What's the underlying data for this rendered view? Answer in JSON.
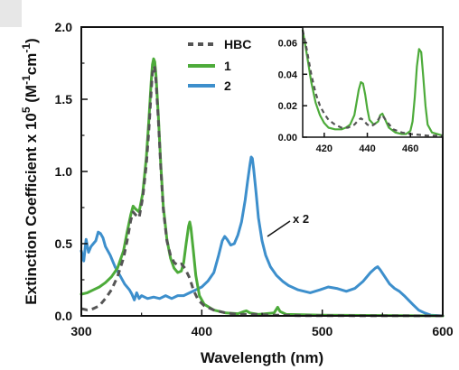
{
  "chart_data": [
    {
      "type": "line",
      "xlabel": "Wavelength (nm)",
      "ylabel_parts": [
        "Extinction Coefficient x 10",
        "5",
        " (M",
        "-1",
        "cm",
        "-1",
        ")"
      ],
      "xlim": [
        300,
        600
      ],
      "ylim": [
        0,
        2.0
      ],
      "x_ticks": [
        300,
        400,
        500,
        600
      ],
      "y_ticks": [
        0.0,
        0.5,
        1.0,
        1.5,
        2.0
      ],
      "y_tick_labels": [
        "0.0",
        "0.5",
        "1.0",
        "1.5",
        "2.0"
      ],
      "legend_position": "top-left",
      "annotation": "x 2",
      "series": [
        {
          "name": "HBC",
          "color": "#555555",
          "style": "dashed",
          "points": [
            [
              300,
              0.05
            ],
            [
              305,
              0.04
            ],
            [
              310,
              0.05
            ],
            [
              315,
              0.07
            ],
            [
              320,
              0.12
            ],
            [
              325,
              0.18
            ],
            [
              330,
              0.27
            ],
            [
              335,
              0.4
            ],
            [
              338,
              0.52
            ],
            [
              341,
              0.66
            ],
            [
              343,
              0.72
            ],
            [
              345,
              0.7
            ],
            [
              348,
              0.68
            ],
            [
              351,
              0.82
            ],
            [
              354,
              1.05
            ],
            [
              356,
              1.28
            ],
            [
              358,
              1.55
            ],
            [
              359,
              1.68
            ],
            [
              360,
              1.73
            ],
            [
              361,
              1.72
            ],
            [
              362,
              1.62
            ],
            [
              364,
              1.35
            ],
            [
              366,
              1.02
            ],
            [
              368,
              0.74
            ],
            [
              371,
              0.52
            ],
            [
              374,
              0.42
            ],
            [
              377,
              0.37
            ],
            [
              380,
              0.35
            ],
            [
              383,
              0.36
            ],
            [
              386,
              0.33
            ],
            [
              390,
              0.26
            ],
            [
              393,
              0.18
            ],
            [
              397,
              0.11
            ],
            [
              402,
              0.07
            ],
            [
              410,
              0.04
            ],
            [
              420,
              0.02
            ],
            [
              430,
              0.01
            ],
            [
              445,
              0.01
            ],
            [
              460,
              0.005
            ],
            [
              480,
              0.002
            ],
            [
              600,
              0.0
            ]
          ]
        },
        {
          "name": "1",
          "color": "#4dab3a",
          "style": "solid",
          "points": [
            [
              300,
              0.15
            ],
            [
              305,
              0.16
            ],
            [
              310,
              0.18
            ],
            [
              315,
              0.2
            ],
            [
              320,
              0.23
            ],
            [
              325,
              0.27
            ],
            [
              330,
              0.33
            ],
            [
              335,
              0.45
            ],
            [
              338,
              0.58
            ],
            [
              341,
              0.7
            ],
            [
              343,
              0.76
            ],
            [
              345,
              0.74
            ],
            [
              348,
              0.72
            ],
            [
              351,
              0.85
            ],
            [
              354,
              1.1
            ],
            [
              356,
              1.35
            ],
            [
              358,
              1.62
            ],
            [
              359,
              1.74
            ],
            [
              360,
              1.78
            ],
            [
              361,
              1.76
            ],
            [
              362,
              1.66
            ],
            [
              364,
              1.38
            ],
            [
              366,
              1.04
            ],
            [
              368,
              0.76
            ],
            [
              371,
              0.53
            ],
            [
              374,
              0.4
            ],
            [
              377,
              0.33
            ],
            [
              380,
              0.3
            ],
            [
              383,
              0.31
            ],
            [
              385,
              0.37
            ],
            [
              387,
              0.5
            ],
            [
              389,
              0.62
            ],
            [
              390,
              0.65
            ],
            [
              391,
              0.61
            ],
            [
              393,
              0.45
            ],
            [
              395,
              0.28
            ],
            [
              398,
              0.14
            ],
            [
              402,
              0.08
            ],
            [
              410,
              0.04
            ],
            [
              420,
              0.02
            ],
            [
              430,
              0.015
            ],
            [
              435,
              0.03
            ],
            [
              437,
              0.035
            ],
            [
              440,
              0.02
            ],
            [
              447,
              0.01
            ],
            [
              460,
              0.02
            ],
            [
              463,
              0.06
            ],
            [
              465,
              0.03
            ],
            [
              470,
              0.01
            ],
            [
              500,
              0.005
            ],
            [
              600,
              0.0
            ]
          ]
        },
        {
          "name": "2",
          "color": "#3d8fcc",
          "style": "solid",
          "points": [
            [
              300,
              0.45
            ],
            [
              302,
              0.38
            ],
            [
              304,
              0.53
            ],
            [
              306,
              0.44
            ],
            [
              308,
              0.48
            ],
            [
              310,
              0.5
            ],
            [
              312,
              0.52
            ],
            [
              314,
              0.58
            ],
            [
              316,
              0.57
            ],
            [
              318,
              0.54
            ],
            [
              320,
              0.48
            ],
            [
              324,
              0.42
            ],
            [
              328,
              0.34
            ],
            [
              332,
              0.28
            ],
            [
              336,
              0.22
            ],
            [
              340,
              0.18
            ],
            [
              342,
              0.15
            ],
            [
              344,
              0.11
            ],
            [
              346,
              0.16
            ],
            [
              348,
              0.12
            ],
            [
              350,
              0.14
            ],
            [
              355,
              0.12
            ],
            [
              360,
              0.13
            ],
            [
              365,
              0.12
            ],
            [
              370,
              0.14
            ],
            [
              375,
              0.12
            ],
            [
              380,
              0.14
            ],
            [
              385,
              0.14
            ],
            [
              390,
              0.16
            ],
            [
              395,
              0.18
            ],
            [
              400,
              0.2
            ],
            [
              405,
              0.24
            ],
            [
              410,
              0.3
            ],
            [
              414,
              0.42
            ],
            [
              417,
              0.52
            ],
            [
              419,
              0.55
            ],
            [
              421,
              0.53
            ],
            [
              424,
              0.49
            ],
            [
              427,
              0.5
            ],
            [
              430,
              0.56
            ],
            [
              433,
              0.65
            ],
            [
              436,
              0.8
            ],
            [
              438,
              0.93
            ],
            [
              440,
              1.05
            ],
            [
              441,
              1.1
            ],
            [
              442,
              1.09
            ],
            [
              443,
              1.02
            ],
            [
              445,
              0.86
            ],
            [
              447,
              0.68
            ],
            [
              450,
              0.52
            ],
            [
              453,
              0.42
            ],
            [
              457,
              0.34
            ],
            [
              462,
              0.28
            ],
            [
              467,
              0.24
            ],
            [
              472,
              0.21
            ],
            [
              480,
              0.18
            ],
            [
              490,
              0.16
            ],
            [
              498,
              0.18
            ],
            [
              505,
              0.2
            ],
            [
              512,
              0.19
            ],
            [
              520,
              0.17
            ],
            [
              527,
              0.19
            ],
            [
              534,
              0.24
            ],
            [
              540,
              0.3
            ],
            [
              544,
              0.33
            ],
            [
              546,
              0.34
            ],
            [
              548,
              0.32
            ],
            [
              552,
              0.27
            ],
            [
              556,
              0.22
            ],
            [
              560,
              0.19
            ],
            [
              564,
              0.17
            ],
            [
              568,
              0.14
            ],
            [
              575,
              0.08
            ],
            [
              580,
              0.04
            ],
            [
              585,
              0.02
            ],
            [
              590,
              0.005
            ],
            [
              600,
              0.0
            ]
          ]
        }
      ]
    },
    {
      "type": "line",
      "role": "inset",
      "xlim": [
        410,
        475
      ],
      "ylim": [
        0,
        0.07
      ],
      "x_ticks": [
        420,
        440,
        460
      ],
      "y_ticks": [
        0.0,
        0.02,
        0.04,
        0.06
      ],
      "y_tick_labels": [
        "0.00",
        "0.02",
        "0.04",
        "0.06"
      ],
      "series": [
        {
          "name": "HBC",
          "color": "#555555",
          "style": "dashed",
          "points": [
            [
              410,
              0.068
            ],
            [
              412,
              0.055
            ],
            [
              414,
              0.04
            ],
            [
              416,
              0.028
            ],
            [
              418,
              0.02
            ],
            [
              420,
              0.015
            ],
            [
              422,
              0.011
            ],
            [
              425,
              0.008
            ],
            [
              428,
              0.006
            ],
            [
              431,
              0.006
            ],
            [
              434,
              0.008
            ],
            [
              436,
              0.011
            ],
            [
              437,
              0.012
            ],
            [
              438,
              0.011
            ],
            [
              440,
              0.008
            ],
            [
              442,
              0.007
            ],
            [
              444,
              0.009
            ],
            [
              446,
              0.013
            ],
            [
              447,
              0.014
            ],
            [
              449,
              0.01
            ],
            [
              452,
              0.005
            ],
            [
              456,
              0.003
            ],
            [
              460,
              0.002
            ],
            [
              464,
              0.0015
            ],
            [
              468,
              0.001
            ],
            [
              475,
              0.001
            ]
          ]
        },
        {
          "name": "1",
          "color": "#4dab3a",
          "style": "solid",
          "points": [
            [
              410,
              0.068
            ],
            [
              412,
              0.052
            ],
            [
              414,
              0.035
            ],
            [
              416,
              0.022
            ],
            [
              418,
              0.014
            ],
            [
              420,
              0.009
            ],
            [
              422,
              0.006
            ],
            [
              425,
              0.005
            ],
            [
              428,
              0.005
            ],
            [
              430,
              0.006
            ],
            [
              432,
              0.008
            ],
            [
              434,
              0.014
            ],
            [
              435,
              0.022
            ],
            [
              436,
              0.03
            ],
            [
              437,
              0.035
            ],
            [
              438,
              0.034
            ],
            [
              439,
              0.027
            ],
            [
              440,
              0.018
            ],
            [
              441,
              0.011
            ],
            [
              443,
              0.008
            ],
            [
              445,
              0.01
            ],
            [
              446,
              0.014
            ],
            [
              447,
              0.015
            ],
            [
              448,
              0.012
            ],
            [
              450,
              0.006
            ],
            [
              453,
              0.003
            ],
            [
              456,
              0.002
            ],
            [
              458,
              0.002
            ],
            [
              460,
              0.004
            ],
            [
              461,
              0.01
            ],
            [
              462,
              0.025
            ],
            [
              463,
              0.045
            ],
            [
              464,
              0.056
            ],
            [
              465,
              0.054
            ],
            [
              466,
              0.038
            ],
            [
              467,
              0.02
            ],
            [
              468,
              0.008
            ],
            [
              470,
              0.003
            ],
            [
              475,
              0.001
            ]
          ]
        }
      ]
    }
  ]
}
